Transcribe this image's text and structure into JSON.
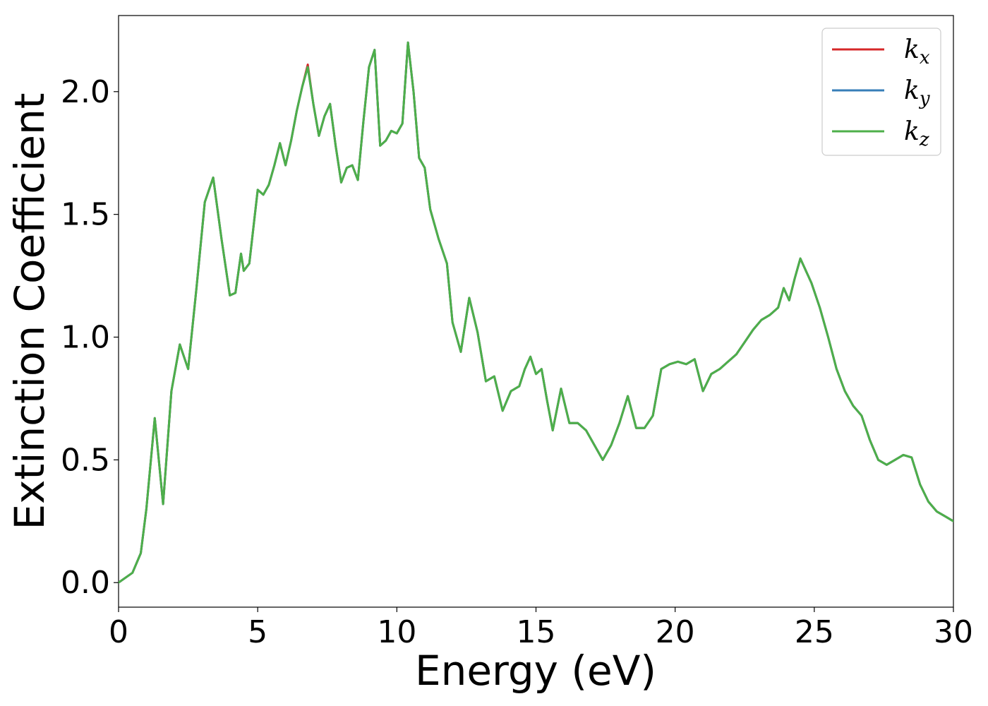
{
  "chart_data": {
    "type": "line",
    "title": "",
    "xlabel": "Energy (eV)",
    "ylabel": "Extinction Coefficient",
    "xlim": [
      0,
      30
    ],
    "ylim": [
      -0.1,
      2.31
    ],
    "x_ticks": [
      0,
      5,
      10,
      15,
      20,
      25,
      30
    ],
    "x_tick_labels": [
      "0",
      "5",
      "10",
      "15",
      "20",
      "25",
      "30"
    ],
    "y_ticks": [
      0.0,
      0.5,
      1.0,
      1.5,
      2.0
    ],
    "y_tick_labels": [
      "0.0",
      "0.5",
      "1.0",
      "1.5",
      "2.0"
    ],
    "grid": false,
    "legend_position": "top-right",
    "x": [
      0,
      0.5,
      0.8,
      1.0,
      1.3,
      1.6,
      1.9,
      2.2,
      2.5,
      2.8,
      3.1,
      3.4,
      3.7,
      4.0,
      4.2,
      4.4,
      4.5,
      4.7,
      4.9,
      5.0,
      5.2,
      5.4,
      5.6,
      5.8,
      6.0,
      6.2,
      6.4,
      6.6,
      6.8,
      7.0,
      7.2,
      7.4,
      7.6,
      7.8,
      8.0,
      8.2,
      8.4,
      8.6,
      8.8,
      9.0,
      9.2,
      9.4,
      9.6,
      9.8,
      10.0,
      10.2,
      10.4,
      10.6,
      10.8,
      11.0,
      11.2,
      11.5,
      11.8,
      12.0,
      12.3,
      12.6,
      12.9,
      13.2,
      13.5,
      13.8,
      14.1,
      14.4,
      14.6,
      14.8,
      15.0,
      15.2,
      15.4,
      15.6,
      15.9,
      16.2,
      16.5,
      16.8,
      17.1,
      17.4,
      17.7,
      18.0,
      18.3,
      18.6,
      18.9,
      19.2,
      19.5,
      19.8,
      20.1,
      20.4,
      20.7,
      21.0,
      21.3,
      21.6,
      21.9,
      22.2,
      22.5,
      22.8,
      23.1,
      23.4,
      23.7,
      23.9,
      24.1,
      24.3,
      24.5,
      24.7,
      24.9,
      25.2,
      25.5,
      25.8,
      26.1,
      26.4,
      26.7,
      27.0,
      27.3,
      27.6,
      27.9,
      28.2,
      28.5,
      28.8,
      29.1,
      29.4,
      29.7,
      30.0
    ],
    "series": [
      {
        "name": "x",
        "color": "#d62728",
        "values": [
          0.0,
          0.04,
          0.12,
          0.3,
          0.67,
          0.32,
          0.78,
          0.97,
          0.87,
          1.2,
          1.55,
          1.65,
          1.4,
          1.17,
          1.18,
          1.34,
          1.27,
          1.3,
          1.5,
          1.6,
          1.58,
          1.62,
          1.7,
          1.79,
          1.7,
          1.8,
          1.92,
          2.02,
          2.11,
          1.95,
          1.82,
          1.9,
          1.95,
          1.78,
          1.63,
          1.69,
          1.7,
          1.64,
          1.88,
          2.1,
          2.17,
          1.78,
          1.8,
          1.84,
          1.83,
          1.87,
          2.2,
          2.0,
          1.73,
          1.69,
          1.52,
          1.4,
          1.3,
          1.06,
          0.94,
          1.16,
          1.02,
          0.82,
          0.84,
          0.7,
          0.78,
          0.8,
          0.87,
          0.92,
          0.85,
          0.87,
          0.74,
          0.62,
          0.79,
          0.65,
          0.65,
          0.62,
          0.56,
          0.5,
          0.56,
          0.65,
          0.76,
          0.63,
          0.63,
          0.68,
          0.87,
          0.89,
          0.9,
          0.89,
          0.91,
          0.78,
          0.85,
          0.87,
          0.9,
          0.93,
          0.98,
          1.03,
          1.07,
          1.09,
          1.12,
          1.2,
          1.15,
          1.24,
          1.32,
          1.27,
          1.22,
          1.12,
          1.0,
          0.87,
          0.78,
          0.72,
          0.68,
          0.58,
          0.5,
          0.48,
          0.5,
          0.52,
          0.51,
          0.4,
          0.33,
          0.29,
          0.27,
          0.25
        ]
      },
      {
        "name": "y",
        "color": "#377eb8",
        "values": [
          0.0,
          0.04,
          0.12,
          0.3,
          0.67,
          0.32,
          0.78,
          0.97,
          0.87,
          1.2,
          1.55,
          1.65,
          1.4,
          1.17,
          1.18,
          1.34,
          1.27,
          1.3,
          1.5,
          1.6,
          1.58,
          1.62,
          1.7,
          1.79,
          1.7,
          1.8,
          1.92,
          2.02,
          2.1,
          1.95,
          1.82,
          1.9,
          1.95,
          1.78,
          1.63,
          1.69,
          1.7,
          1.64,
          1.88,
          2.1,
          2.17,
          1.78,
          1.8,
          1.84,
          1.83,
          1.87,
          2.2,
          2.0,
          1.73,
          1.69,
          1.52,
          1.4,
          1.3,
          1.06,
          0.94,
          1.16,
          1.02,
          0.82,
          0.84,
          0.7,
          0.78,
          0.8,
          0.87,
          0.92,
          0.85,
          0.87,
          0.74,
          0.62,
          0.79,
          0.65,
          0.65,
          0.62,
          0.56,
          0.5,
          0.56,
          0.65,
          0.76,
          0.63,
          0.63,
          0.68,
          0.87,
          0.89,
          0.9,
          0.89,
          0.91,
          0.78,
          0.85,
          0.87,
          0.9,
          0.93,
          0.98,
          1.03,
          1.07,
          1.09,
          1.12,
          1.2,
          1.15,
          1.24,
          1.32,
          1.27,
          1.22,
          1.12,
          1.0,
          0.87,
          0.78,
          0.72,
          0.68,
          0.58,
          0.5,
          0.48,
          0.5,
          0.52,
          0.51,
          0.4,
          0.33,
          0.29,
          0.27,
          0.25
        ]
      },
      {
        "name": "z",
        "color": "#4daf4a",
        "values": [
          0.0,
          0.04,
          0.12,
          0.3,
          0.67,
          0.32,
          0.78,
          0.97,
          0.87,
          1.2,
          1.55,
          1.65,
          1.4,
          1.17,
          1.18,
          1.34,
          1.27,
          1.3,
          1.5,
          1.6,
          1.58,
          1.62,
          1.7,
          1.79,
          1.7,
          1.8,
          1.92,
          2.02,
          2.1,
          1.95,
          1.82,
          1.9,
          1.95,
          1.78,
          1.63,
          1.69,
          1.7,
          1.64,
          1.88,
          2.1,
          2.17,
          1.78,
          1.8,
          1.84,
          1.83,
          1.87,
          2.2,
          2.0,
          1.73,
          1.69,
          1.52,
          1.4,
          1.3,
          1.06,
          0.94,
          1.16,
          1.02,
          0.82,
          0.84,
          0.7,
          0.78,
          0.8,
          0.87,
          0.92,
          0.85,
          0.87,
          0.74,
          0.62,
          0.79,
          0.65,
          0.65,
          0.62,
          0.56,
          0.5,
          0.56,
          0.65,
          0.76,
          0.63,
          0.63,
          0.68,
          0.87,
          0.89,
          0.9,
          0.89,
          0.91,
          0.78,
          0.85,
          0.87,
          0.9,
          0.93,
          0.98,
          1.03,
          1.07,
          1.09,
          1.12,
          1.2,
          1.15,
          1.24,
          1.32,
          1.27,
          1.22,
          1.12,
          1.0,
          0.87,
          0.78,
          0.72,
          0.68,
          0.58,
          0.5,
          0.48,
          0.5,
          0.52,
          0.51,
          0.4,
          0.33,
          0.29,
          0.27,
          0.25
        ]
      }
    ]
  }
}
